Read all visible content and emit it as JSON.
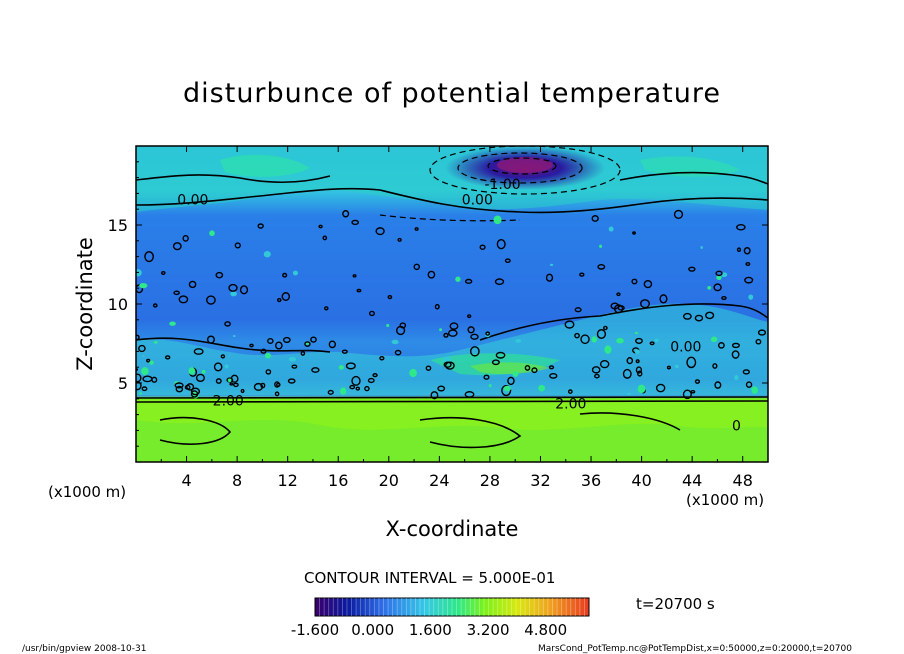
{
  "chart_data": {
    "type": "heatmap",
    "title": "disturbunce of potential temperature",
    "xlabel": "X-coordinate",
    "ylabel": "Z-coordinate",
    "x_unit_label": "(x1000 m)",
    "x_unit_label_right": "(x1000 m)",
    "xlim": [
      0,
      50
    ],
    "ylim": [
      0,
      20
    ],
    "x_ticks": [
      4,
      8,
      12,
      16,
      20,
      24,
      28,
      32,
      36,
      40,
      44,
      48
    ],
    "y_ticks": [
      5,
      10,
      15
    ],
    "contour_interval_label": "CONTOUR INTERVAL = 5.000E-01",
    "time_label": "t=20700 s",
    "colorbar": {
      "range": [
        -1.6,
        6.0
      ],
      "tick_labels": [
        "-1.600",
        "0.000",
        "1.600",
        "3.200",
        "4.800"
      ],
      "tick_values": [
        -1.6,
        0.0,
        1.6,
        3.2,
        4.8
      ],
      "colormap": [
        "#3a006a",
        "#0a1aa0",
        "#2f6fe8",
        "#35c8e6",
        "#2fe88a",
        "#7cf21a",
        "#d9e810",
        "#f0a020",
        "#e83a20"
      ]
    },
    "contour_labels": [
      {
        "text": "0.00",
        "x": 4.5,
        "y": 16.6
      },
      {
        "text": "0.00",
        "x": 27.0,
        "y": 16.6
      },
      {
        "text": "-1.00",
        "x": 29.0,
        "y": 17.6
      },
      {
        "text": "0.00",
        "x": 43.5,
        "y": 7.3
      },
      {
        "text": "2.00",
        "x": 7.3,
        "y": 3.9
      },
      {
        "text": "2.00",
        "x": 34.4,
        "y": 3.7
      },
      {
        "text": "0",
        "x": 47.5,
        "y": 2.3
      }
    ],
    "bands": [
      {
        "z_from": 0,
        "z_to": 4.0,
        "value": 2.2
      },
      {
        "z_from": 4.0,
        "z_to": 6.5,
        "value": 0.3
      },
      {
        "z_from": 6.5,
        "z_to": 16.0,
        "value": 0.0
      },
      {
        "z_from": 16.0,
        "z_to": 20.0,
        "value": 0.1
      },
      {
        "z_from": 17.5,
        "z_to": 19.5,
        "value": -1.3
      }
    ]
  },
  "footer": {
    "left": "/usr/bin/gpview  2008-10-31",
    "right": "MarsCond_PotTemp.nc@PotTempDist,x=0:50000,z=0:20000,t=20700"
  }
}
